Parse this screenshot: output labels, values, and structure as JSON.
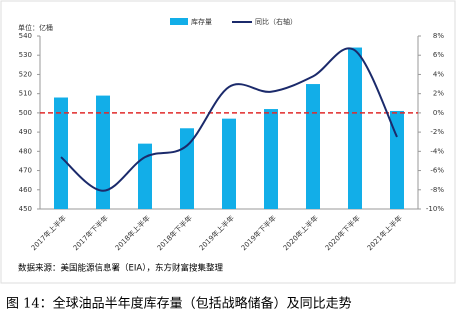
{
  "chart_data": {
    "type": "bar-line",
    "unit_label": "单位：亿桶",
    "categories": [
      "2017年上半年",
      "2017年下半年",
      "2018年上半年",
      "2018年下半年",
      "2019年上半年",
      "2019年下半年",
      "2020年上半年",
      "2020年下半年",
      "2021年上半年"
    ],
    "series": [
      {
        "name": "库存量",
        "type": "bar",
        "color": "#12aee8",
        "values": [
          508,
          509,
          484,
          492,
          497,
          502,
          515,
          534,
          501
        ]
      },
      {
        "name": "同比（右轴）",
        "type": "line",
        "axis": "y2",
        "color": "#1b2a6b",
        "values": [
          -4.6,
          -8.1,
          -4.6,
          -3.4,
          2.7,
          2.2,
          3.8,
          6.5,
          -2.5
        ]
      }
    ],
    "ylim": [
      450,
      540
    ],
    "yticks": [
      450,
      460,
      470,
      480,
      490,
      500,
      510,
      520,
      530,
      540
    ],
    "y2lim": [
      -10,
      8
    ],
    "y2ticks": [
      {
        "value": -10,
        "label": "-10%"
      },
      {
        "value": -8,
        "label": "-8%"
      },
      {
        "value": -6,
        "label": "-6%"
      },
      {
        "value": -4,
        "label": "-4%"
      },
      {
        "value": -2,
        "label": "-2%"
      },
      {
        "value": 0,
        "label": "0%"
      },
      {
        "value": 2,
        "label": "2%"
      },
      {
        "value": 4,
        "label": "4%"
      },
      {
        "value": 6,
        "label": "6%"
      },
      {
        "value": 8,
        "label": "8%"
      }
    ],
    "reference_line": {
      "value": 500,
      "color": "#e02a2a"
    },
    "source": "数据来源：美国能源信息署（EIA），东方财富搜集整理",
    "caption": "图 14：全球油品半年度库存量（包括战略储备）及同比走势"
  }
}
